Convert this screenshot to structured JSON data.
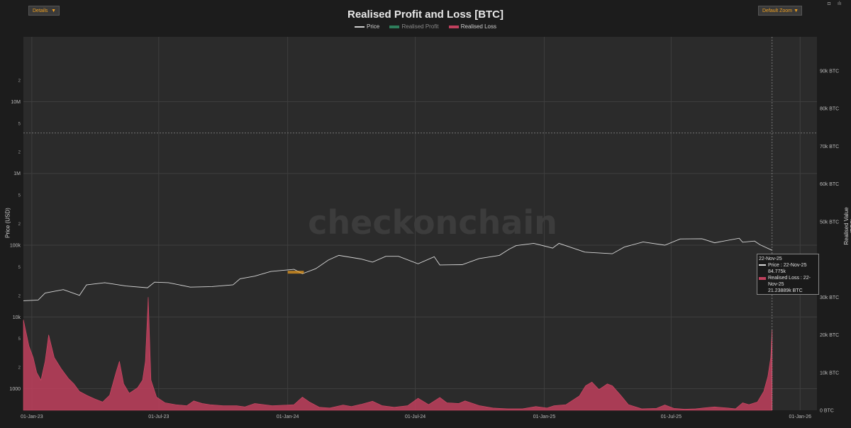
{
  "toolbar": {
    "details_label": "Details",
    "zoom_label": "Default Zoom",
    "arrow": "▼",
    "camera_icon": "camera-icon",
    "bars_icon": "bars-icon"
  },
  "colors": {
    "background": "#1c1c1c",
    "plot_bg": "#2b2b2b",
    "price": "#d8d8d8",
    "realised_profit": "#2e7d5b",
    "realised_loss": "#c0405d",
    "accent": "#f0a020"
  },
  "chart_data": {
    "type": "area",
    "title": "Realised Profit and Loss [BTC]",
    "watermark": "checkonchain",
    "legend": [
      "Price",
      "Realised Profit",
      "Realised Loss"
    ],
    "legend_placement": "top-center",
    "y_left_label": "Price (USD)",
    "y_right_label": "Realised Value (BTC)",
    "y_left_scale": "log",
    "y_left_range": [
      500,
      80000000
    ],
    "y_left_ticks": [
      {
        "v": 1000,
        "label": "1000"
      },
      {
        "v": 10000,
        "label": "10k"
      },
      {
        "v": 100000,
        "label": "100k"
      },
      {
        "v": 1000000,
        "label": "1M"
      },
      {
        "v": 10000000,
        "label": "10M"
      }
    ],
    "y_left_minor": [
      {
        "v": 2000,
        "label": "2"
      },
      {
        "v": 5000,
        "label": "5"
      },
      {
        "v": 20000,
        "label": "2"
      },
      {
        "v": 50000,
        "label": "5"
      },
      {
        "v": 200000,
        "label": "2"
      },
      {
        "v": 500000,
        "label": "5"
      },
      {
        "v": 2000000,
        "label": "2"
      },
      {
        "v": 5000000,
        "label": "5"
      },
      {
        "v": 20000000,
        "label": "2"
      }
    ],
    "y_right_range": [
      0,
      99000
    ],
    "y_right_ticks": [
      {
        "v": 0,
        "label": "0 BTC"
      },
      {
        "v": 10000,
        "label": "10k BTC"
      },
      {
        "v": 20000,
        "label": "20k BTC"
      },
      {
        "v": 30000,
        "label": "30k BTC"
      },
      {
        "v": 50000,
        "label": "50k BTC"
      },
      {
        "v": 60000,
        "label": "60k BTC"
      },
      {
        "v": 70000,
        "label": "70k BTC"
      },
      {
        "v": 80000,
        "label": "80k BTC"
      },
      {
        "v": 90000,
        "label": "90k BTC"
      }
    ],
    "x_range": [
      "2022-12-20",
      "2026-01-25"
    ],
    "x_ticks": [
      {
        "d": "2023-01-01",
        "label": "01-Jan-23"
      },
      {
        "d": "2023-07-01",
        "label": "01-Jul-23"
      },
      {
        "d": "2024-01-01",
        "label": "01-Jan-24"
      },
      {
        "d": "2024-07-01",
        "label": "01-Jul-24"
      },
      {
        "d": "2025-01-01",
        "label": "01-Jan-25"
      },
      {
        "d": "2025-07-01",
        "label": "01-Jul-25"
      },
      {
        "d": "2026-01-01",
        "label": "01-Jan-26"
      }
    ],
    "grid": true,
    "hover_date": "2025-11-22",
    "price_series": [
      [
        "2022-12-20",
        16800
      ],
      [
        "2023-01-10",
        17200
      ],
      [
        "2023-01-20",
        21500
      ],
      [
        "2023-02-15",
        24000
      ],
      [
        "2023-03-10",
        20000
      ],
      [
        "2023-03-20",
        28000
      ],
      [
        "2023-04-15",
        30000
      ],
      [
        "2023-05-15",
        27000
      ],
      [
        "2023-06-15",
        25500
      ],
      [
        "2023-06-25",
        30500
      ],
      [
        "2023-07-15",
        30000
      ],
      [
        "2023-08-15",
        26000
      ],
      [
        "2023-09-15",
        26500
      ],
      [
        "2023-10-15",
        28000
      ],
      [
        "2023-10-25",
        34000
      ],
      [
        "2023-11-15",
        37000
      ],
      [
        "2023-12-08",
        43000
      ],
      [
        "2024-01-10",
        46000
      ],
      [
        "2024-01-22",
        40000
      ],
      [
        "2024-02-10",
        47000
      ],
      [
        "2024-02-28",
        62000
      ],
      [
        "2024-03-14",
        72000
      ],
      [
        "2024-04-15",
        64000
      ],
      [
        "2024-05-01",
        58000
      ],
      [
        "2024-05-20",
        70000
      ],
      [
        "2024-06-07",
        70000
      ],
      [
        "2024-07-05",
        55000
      ],
      [
        "2024-07-28",
        69000
      ],
      [
        "2024-08-05",
        53000
      ],
      [
        "2024-09-06",
        53500
      ],
      [
        "2024-09-30",
        65000
      ],
      [
        "2024-10-29",
        72000
      ],
      [
        "2024-11-12",
        88000
      ],
      [
        "2024-11-22",
        98500
      ],
      [
        "2024-12-17",
        106000
      ],
      [
        "2025-01-13",
        91000
      ],
      [
        "2025-01-22",
        106000
      ],
      [
        "2025-02-28",
        80000
      ],
      [
        "2025-04-08",
        76000
      ],
      [
        "2025-04-25",
        94000
      ],
      [
        "2025-05-22",
        111000
      ],
      [
        "2025-06-22",
        100000
      ],
      [
        "2025-07-14",
        122000
      ],
      [
        "2025-08-14",
        123000
      ],
      [
        "2025-09-01",
        108000
      ],
      [
        "2025-10-06",
        125000
      ],
      [
        "2025-10-11",
        110000
      ],
      [
        "2025-10-28",
        114000
      ],
      [
        "2025-11-05",
        101000
      ],
      [
        "2025-11-22",
        84775
      ]
    ],
    "highlight_segment": [
      "2024-01-01",
      "2024-01-24"
    ],
    "realised_loss_series": [
      [
        "2022-12-20",
        24000
      ],
      [
        "2022-12-28",
        17000
      ],
      [
        "2023-01-03",
        14000
      ],
      [
        "2023-01-08",
        10000
      ],
      [
        "2023-01-14",
        8000
      ],
      [
        "2023-01-20",
        13000
      ],
      [
        "2023-01-25",
        20000
      ],
      [
        "2023-02-02",
        14000
      ],
      [
        "2023-02-12",
        11000
      ],
      [
        "2023-02-22",
        8500
      ],
      [
        "2023-03-02",
        7000
      ],
      [
        "2023-03-10",
        5000
      ],
      [
        "2023-03-20",
        4000
      ],
      [
        "2023-04-01",
        3000
      ],
      [
        "2023-04-12",
        2200
      ],
      [
        "2023-04-22",
        4000
      ],
      [
        "2023-05-01",
        10000
      ],
      [
        "2023-05-06",
        13000
      ],
      [
        "2023-05-12",
        7000
      ],
      [
        "2023-05-20",
        4500
      ],
      [
        "2023-06-01",
        6000
      ],
      [
        "2023-06-08",
        8000
      ],
      [
        "2023-06-12",
        13000
      ],
      [
        "2023-06-16",
        30000
      ],
      [
        "2023-06-20",
        8000
      ],
      [
        "2023-06-28",
        3500
      ],
      [
        "2023-07-10",
        2000
      ],
      [
        "2023-07-25",
        1500
      ],
      [
        "2023-08-10",
        1200
      ],
      [
        "2023-08-20",
        2500
      ],
      [
        "2023-09-01",
        1800
      ],
      [
        "2023-09-12",
        1500
      ],
      [
        "2023-10-01",
        1200
      ],
      [
        "2023-10-20",
        1200
      ],
      [
        "2023-11-01",
        900
      ],
      [
        "2023-11-15",
        1800
      ],
      [
        "2023-11-28",
        1500
      ],
      [
        "2023-12-10",
        1200
      ],
      [
        "2024-01-01",
        1400
      ],
      [
        "2024-01-10",
        1500
      ],
      [
        "2024-01-22",
        3500
      ],
      [
        "2024-02-01",
        2200
      ],
      [
        "2024-02-15",
        800
      ],
      [
        "2024-03-01",
        600
      ],
      [
        "2024-03-20",
        1400
      ],
      [
        "2024-04-01",
        1000
      ],
      [
        "2024-04-15",
        1600
      ],
      [
        "2024-05-01",
        2400
      ],
      [
        "2024-05-15",
        1200
      ],
      [
        "2024-06-01",
        800
      ],
      [
        "2024-06-20",
        1200
      ],
      [
        "2024-07-05",
        3200
      ],
      [
        "2024-07-20",
        1500
      ],
      [
        "2024-08-05",
        3400
      ],
      [
        "2024-08-15",
        2000
      ],
      [
        "2024-09-01",
        1800
      ],
      [
        "2024-09-10",
        2500
      ],
      [
        "2024-10-01",
        1200
      ],
      [
        "2024-10-20",
        600
      ],
      [
        "2024-11-10",
        400
      ],
      [
        "2024-12-01",
        400
      ],
      [
        "2024-12-20",
        1000
      ],
      [
        "2025-01-05",
        600
      ],
      [
        "2025-01-15",
        1200
      ],
      [
        "2025-02-01",
        1500
      ],
      [
        "2025-02-20",
        3800
      ],
      [
        "2025-03-01",
        6500
      ],
      [
        "2025-03-10",
        7500
      ],
      [
        "2025-03-20",
        5500
      ],
      [
        "2025-04-01",
        7000
      ],
      [
        "2025-04-08",
        6500
      ],
      [
        "2025-04-20",
        4000
      ],
      [
        "2025-05-01",
        1500
      ],
      [
        "2025-05-20",
        400
      ],
      [
        "2025-06-10",
        500
      ],
      [
        "2025-06-22",
        1400
      ],
      [
        "2025-07-05",
        500
      ],
      [
        "2025-07-20",
        300
      ],
      [
        "2025-08-05",
        400
      ],
      [
        "2025-08-20",
        700
      ],
      [
        "2025-09-01",
        900
      ],
      [
        "2025-09-20",
        600
      ],
      [
        "2025-10-01",
        400
      ],
      [
        "2025-10-11",
        2000
      ],
      [
        "2025-10-20",
        1500
      ],
      [
        "2025-11-01",
        2200
      ],
      [
        "2025-11-10",
        5000
      ],
      [
        "2025-11-16",
        9000
      ],
      [
        "2025-11-20",
        14000
      ],
      [
        "2025-11-22",
        21238
      ]
    ]
  },
  "tooltip": {
    "date": "22-Nov-25",
    "price_line": "Price : 22-Nov-25",
    "price_value": "84.775k",
    "loss_line": "Realised Loss : 22-Nov-25",
    "loss_value": "21.23889k BTC"
  }
}
